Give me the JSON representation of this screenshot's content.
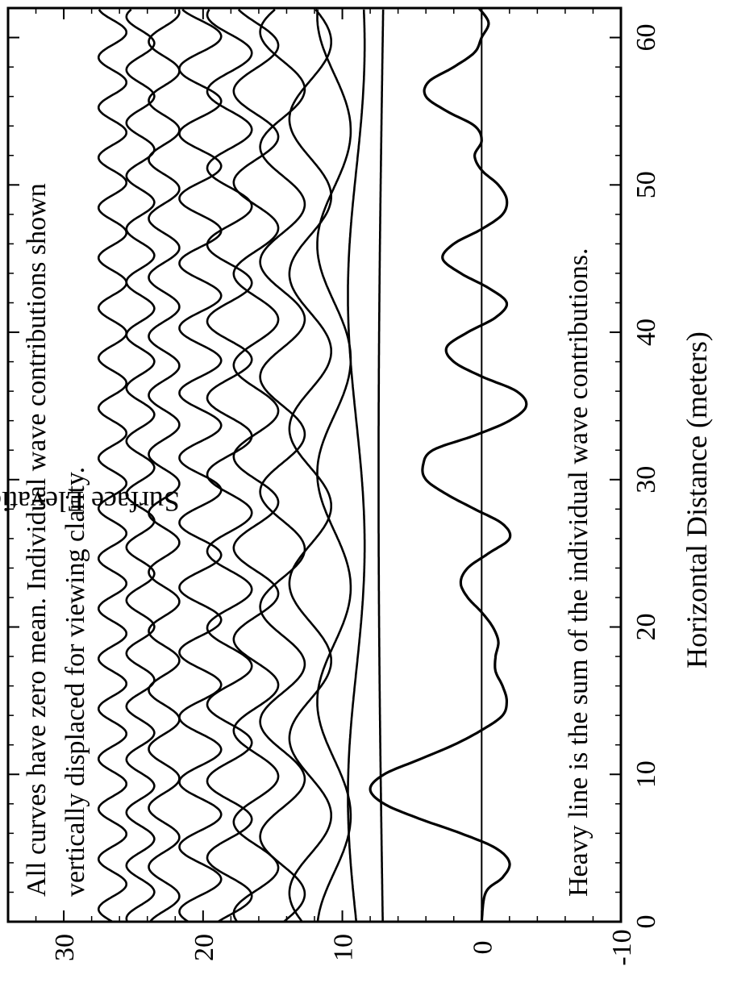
{
  "chart_data": {
    "type": "line",
    "title": "",
    "xlabel": "Horizontal Distance (meters)",
    "ylabel": "Surface Elevation (meters)",
    "xlim": [
      0,
      62
    ],
    "ylim": [
      -10,
      34
    ],
    "x_ticks": [
      0,
      10,
      20,
      30,
      40,
      50,
      60
    ],
    "x_tick_labels": [
      "0",
      "10",
      "20",
      "30",
      "40",
      "50",
      "60"
    ],
    "y_ticks": [
      -10,
      0,
      10,
      20,
      30
    ],
    "y_tick_labels": [
      "-10",
      "0",
      "10",
      "20",
      "30"
    ],
    "grid": false,
    "annotations": [
      "All curves have zero mean. Individual wave contributions shown",
      "vertically displaced for viewing clarity.",
      "Heavy line is the sum of the individual wave contributions."
    ],
    "series": [
      {
        "kind": "component",
        "offset": 26.5,
        "amplitude": 1.0,
        "wavelength": 3.4,
        "phase": 0.0
      },
      {
        "kind": "component",
        "offset": 24.5,
        "amplitude": 1.0,
        "wavelength": 3.6,
        "phase": 1.2
      },
      {
        "kind": "component",
        "offset": 22.8,
        "amplitude": 1.1,
        "wavelength": 4.0,
        "phase": 2.0
      },
      {
        "kind": "component",
        "offset": 20.2,
        "amplitude": 1.5,
        "wavelength": 4.4,
        "phase": 0.6
      },
      {
        "kind": "component",
        "offset": 18.1,
        "amplitude": 1.6,
        "wavelength": 5.2,
        "phase": 2.6
      },
      {
        "kind": "component",
        "offset": 16.2,
        "amplitude": 1.6,
        "wavelength": 6.2,
        "phase": 1.0
      },
      {
        "kind": "component",
        "offset": 14.3,
        "amplitude": 1.6,
        "wavelength": 7.8,
        "phase": 3.2
      },
      {
        "kind": "component",
        "offset": 12.3,
        "amplitude": 1.5,
        "wavelength": 10.5,
        "phase": 0.4
      },
      {
        "kind": "component",
        "offset": 10.6,
        "amplitude": 1.2,
        "wavelength": 15.5,
        "phase": 1.8
      },
      {
        "kind": "component",
        "offset": 9.0,
        "amplitude": 0.6,
        "wavelength": 34.0,
        "phase": 0.0
      },
      {
        "kind": "component",
        "offset": 7.1,
        "amplitude": 0.3,
        "wavelength": 120.0,
        "phase": 0.0
      },
      {
        "kind": "sum",
        "name": "sum",
        "x": [
          0,
          2,
          3,
          4,
          5,
          6,
          7,
          8,
          9,
          10,
          11,
          12,
          13,
          14,
          15,
          16,
          17,
          18,
          19,
          20,
          21,
          22,
          23,
          24,
          25,
          26,
          27,
          28,
          29,
          30,
          31,
          32,
          33,
          34,
          35,
          36,
          37,
          38,
          39,
          40,
          41,
          42,
          43,
          44,
          45,
          46,
          47,
          48,
          49,
          50,
          51,
          52,
          53,
          54,
          55,
          56,
          57,
          58,
          59,
          60,
          61,
          62
        ],
        "y": [
          0,
          -0.3,
          -1.5,
          -2.0,
          -1.0,
          1.5,
          4.5,
          7.0,
          8.0,
          7.0,
          4.5,
          2.0,
          0.0,
          -1.5,
          -1.8,
          -1.5,
          -1.0,
          -1.0,
          -1.2,
          -0.8,
          0.0,
          1.0,
          1.5,
          1.0,
          -0.5,
          -2.0,
          -1.5,
          0.5,
          2.5,
          4.0,
          4.2,
          3.5,
          0.5,
          -2.0,
          -3.2,
          -2.5,
          0.0,
          2.0,
          2.5,
          1.0,
          -1.0,
          -1.8,
          -0.5,
          1.5,
          2.8,
          2.0,
          0.0,
          -1.5,
          -1.8,
          -1.2,
          0.0,
          0.5,
          0.0,
          0.5,
          2.5,
          4.0,
          3.8,
          2.0,
          0.5,
          0.0,
          -0.5,
          0.2
        ]
      },
      {
        "kind": "zero-line",
        "y": 0
      }
    ]
  }
}
